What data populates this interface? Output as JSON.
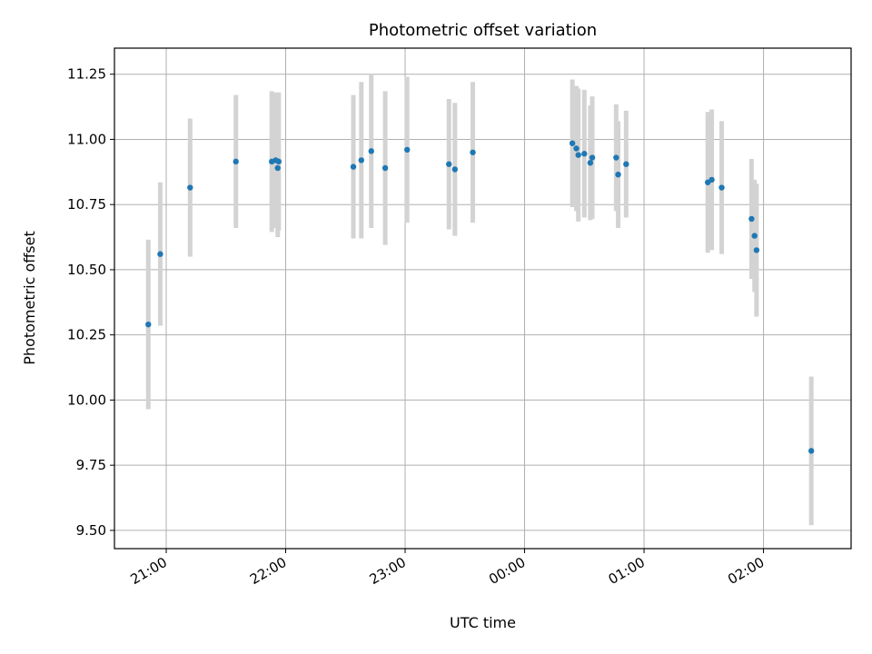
{
  "chart_data": {
    "type": "scatter",
    "title": "Photometric offset variation",
    "xlabel": "UTC time",
    "ylabel": "Photometric offset",
    "x_tick_labels": [
      "21:00",
      "22:00",
      "23:00",
      "00:00",
      "01:00",
      "02:00"
    ],
    "y_tick_labels": [
      "9.50",
      "9.75",
      "10.00",
      "10.25",
      "10.50",
      "10.75",
      "11.00",
      "11.25"
    ],
    "x_ticks_minutes_after_2100": [
      0,
      60,
      120,
      180,
      240,
      300
    ],
    "y_ticks": [
      9.5,
      9.75,
      10.0,
      10.25,
      10.5,
      10.75,
      11.0,
      11.25
    ],
    "xlim_minutes_after_2100": [
      -26,
      344
    ],
    "ylim": [
      9.43,
      11.35
    ],
    "grid": true,
    "colors": {
      "point": "#1f77b4",
      "errorbar": "#d3d3d3",
      "grid": "#b0b0b0"
    },
    "points": [
      {
        "t": -9,
        "y": 10.29,
        "err": 0.325
      },
      {
        "t": -3,
        "y": 10.56,
        "err": 0.275
      },
      {
        "t": 12,
        "y": 10.815,
        "err": 0.265
      },
      {
        "t": 35,
        "y": 10.915,
        "err": 0.255
      },
      {
        "t": 53,
        "y": 10.915,
        "err": 0.27
      },
      {
        "t": 55,
        "y": 10.92,
        "err": 0.26
      },
      {
        "t": 56,
        "y": 10.89,
        "err": 0.265
      },
      {
        "t": 56.5,
        "y": 10.915,
        "err": 0.265
      },
      {
        "t": 94,
        "y": 10.895,
        "err": 0.275
      },
      {
        "t": 98,
        "y": 10.92,
        "err": 0.3
      },
      {
        "t": 103,
        "y": 10.955,
        "err": 0.295
      },
      {
        "t": 110,
        "y": 10.89,
        "err": 0.295
      },
      {
        "t": 121,
        "y": 10.96,
        "err": 0.28
      },
      {
        "t": 142,
        "y": 10.905,
        "err": 0.25
      },
      {
        "t": 145,
        "y": 10.885,
        "err": 0.255
      },
      {
        "t": 154,
        "y": 10.95,
        "err": 0.27
      },
      {
        "t": 204,
        "y": 10.985,
        "err": 0.245
      },
      {
        "t": 206,
        "y": 10.965,
        "err": 0.24
      },
      {
        "t": 207,
        "y": 10.94,
        "err": 0.255
      },
      {
        "t": 210,
        "y": 10.945,
        "err": 0.245
      },
      {
        "t": 213,
        "y": 10.91,
        "err": 0.22
      },
      {
        "t": 214,
        "y": 10.93,
        "err": 0.235
      },
      {
        "t": 226,
        "y": 10.93,
        "err": 0.205
      },
      {
        "t": 227,
        "y": 10.865,
        "err": 0.205
      },
      {
        "t": 231,
        "y": 10.905,
        "err": 0.205
      },
      {
        "t": 272,
        "y": 10.835,
        "err": 0.27
      },
      {
        "t": 274,
        "y": 10.845,
        "err": 0.27
      },
      {
        "t": 279,
        "y": 10.815,
        "err": 0.255
      },
      {
        "t": 294,
        "y": 10.695,
        "err": 0.23
      },
      {
        "t": 295.5,
        "y": 10.63,
        "err": 0.215
      },
      {
        "t": 296.5,
        "y": 10.575,
        "err": 0.255
      },
      {
        "t": 324,
        "y": 9.805,
        "err": 0.285
      }
    ]
  }
}
